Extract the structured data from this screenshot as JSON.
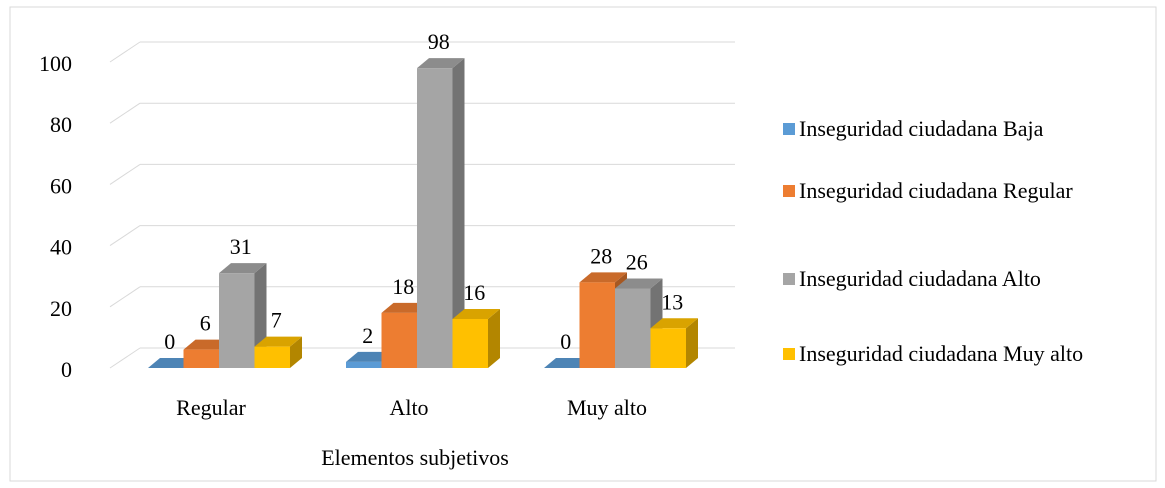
{
  "chart_data": {
    "type": "bar3d",
    "x_label": "Elementos subjetivos",
    "categories": [
      "Regular",
      "Alto",
      "Muy alto"
    ],
    "series": [
      {
        "name": "Inseguridad ciudadana Baja",
        "color": "#5b9bd5",
        "values": [
          0,
          2,
          0
        ]
      },
      {
        "name": "Inseguridad ciudadana Regular",
        "color": "#ed7d31",
        "values": [
          6,
          18,
          28
        ]
      },
      {
        "name": "Inseguridad ciudadana Alto",
        "color": "#a5a5a5",
        "values": [
          31,
          98,
          26
        ]
      },
      {
        "name": "Inseguridad ciudadana Muy alto",
        "color": "#ffc000",
        "values": [
          7,
          16,
          13
        ]
      }
    ],
    "ylim": [
      0,
      100
    ],
    "yticks": [
      0,
      20,
      40,
      60,
      80,
      100
    ],
    "grid": true,
    "legend": "right",
    "data_labels": true
  }
}
